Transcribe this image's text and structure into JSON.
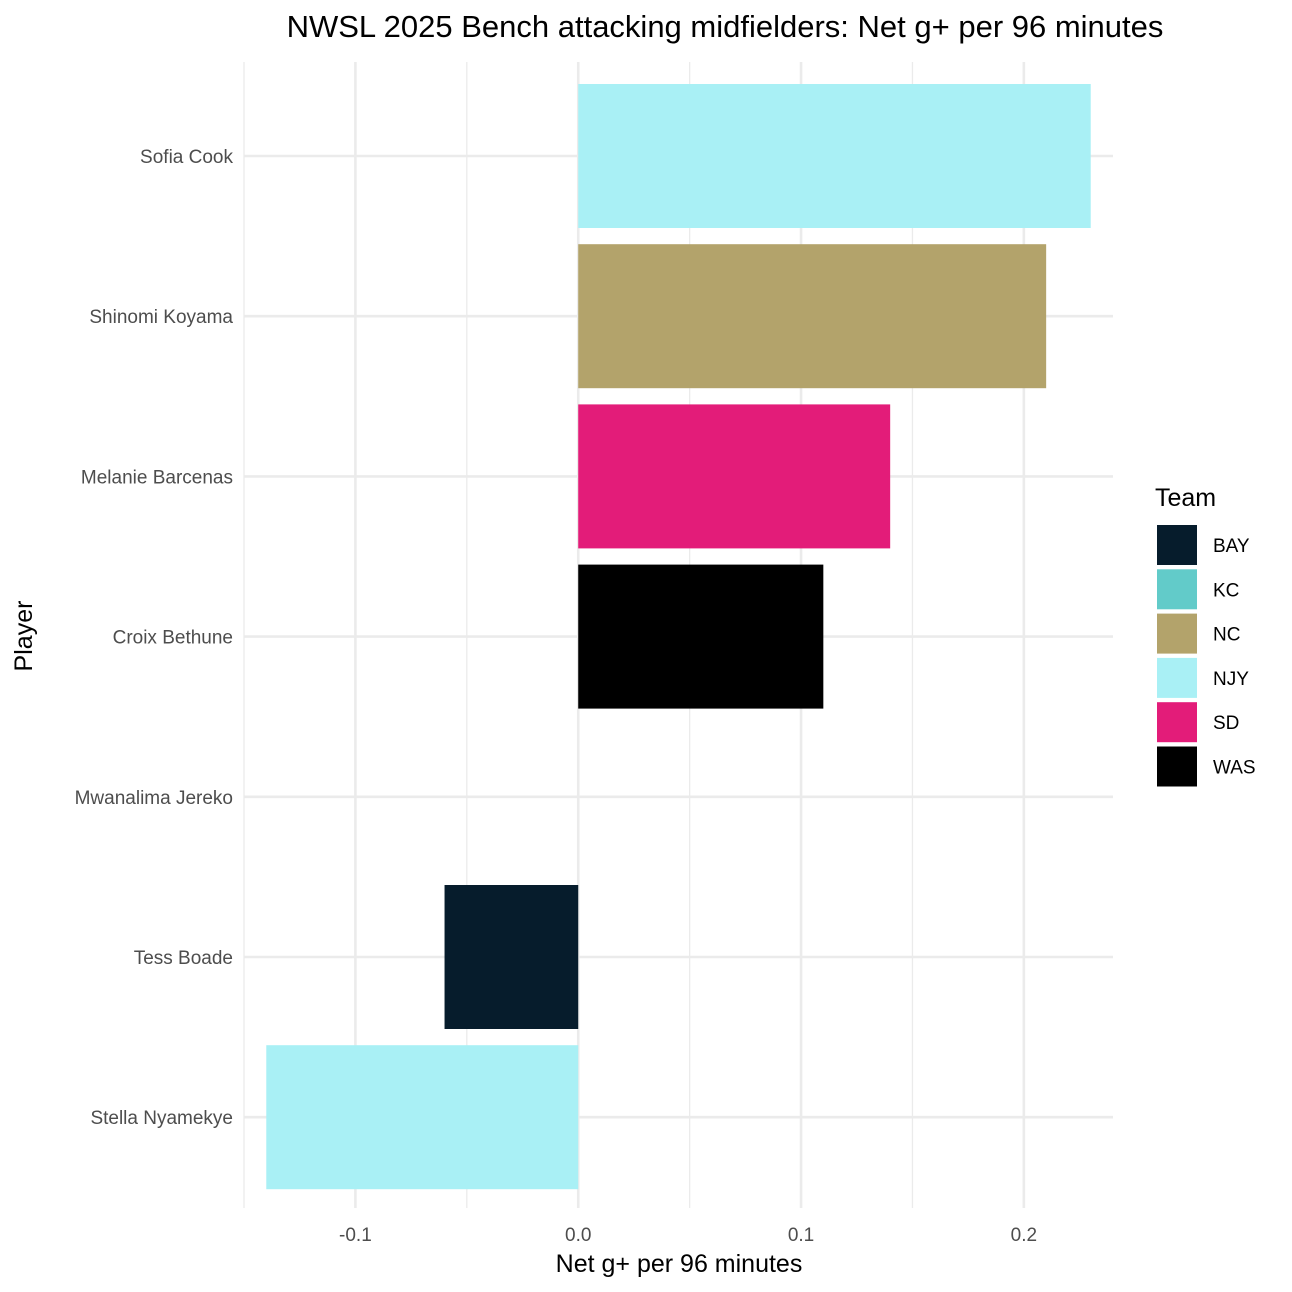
{
  "chart_data": {
    "type": "bar",
    "orientation": "horizontal",
    "title": "NWSL 2025 Bench attacking midfielders: Net g+ per 96 minutes",
    "xlabel": "Net g+ per 96 minutes",
    "ylabel": "Player",
    "xlim": [
      -0.15,
      0.24
    ],
    "x_ticks": [
      -0.1,
      0.0,
      0.1,
      0.2
    ],
    "x_tick_labels": [
      "-0.1",
      "0.0",
      "0.1",
      "0.2"
    ],
    "grid": true,
    "legend_position": "right",
    "legend_title": "Team",
    "legend": [
      {
        "team": "BAY",
        "color": "#061c2c"
      },
      {
        "team": "KC",
        "color": "#62cbc9"
      },
      {
        "team": "NC",
        "color": "#b3a36b"
      },
      {
        "team": "NJY",
        "color": "#a9f0f5"
      },
      {
        "team": "SD",
        "color": "#e31c79"
      },
      {
        "team": "WAS",
        "color": "#000000"
      }
    ],
    "categories": [
      "Sofia Cook",
      "Shinomi Koyama",
      "Melanie Barcenas",
      "Croix Bethune",
      "Mwanalima Jereko",
      "Tess Boade",
      "Stella Nyamekye"
    ],
    "bars": [
      {
        "player": "Sofia Cook",
        "team": "NJY",
        "value": 0.23
      },
      {
        "player": "Shinomi Koyama",
        "team": "NC",
        "value": 0.21
      },
      {
        "player": "Melanie Barcenas",
        "team": "SD",
        "value": 0.14
      },
      {
        "player": "Croix Bethune",
        "team": "WAS",
        "value": 0.11
      },
      {
        "player": "Mwanalima Jereko",
        "team": "KC",
        "value": 0.0
      },
      {
        "player": "Tess Boade",
        "team": "BAY",
        "value": -0.06
      },
      {
        "player": "Stella Nyamekye",
        "team": "NJY",
        "value": -0.14
      }
    ]
  }
}
